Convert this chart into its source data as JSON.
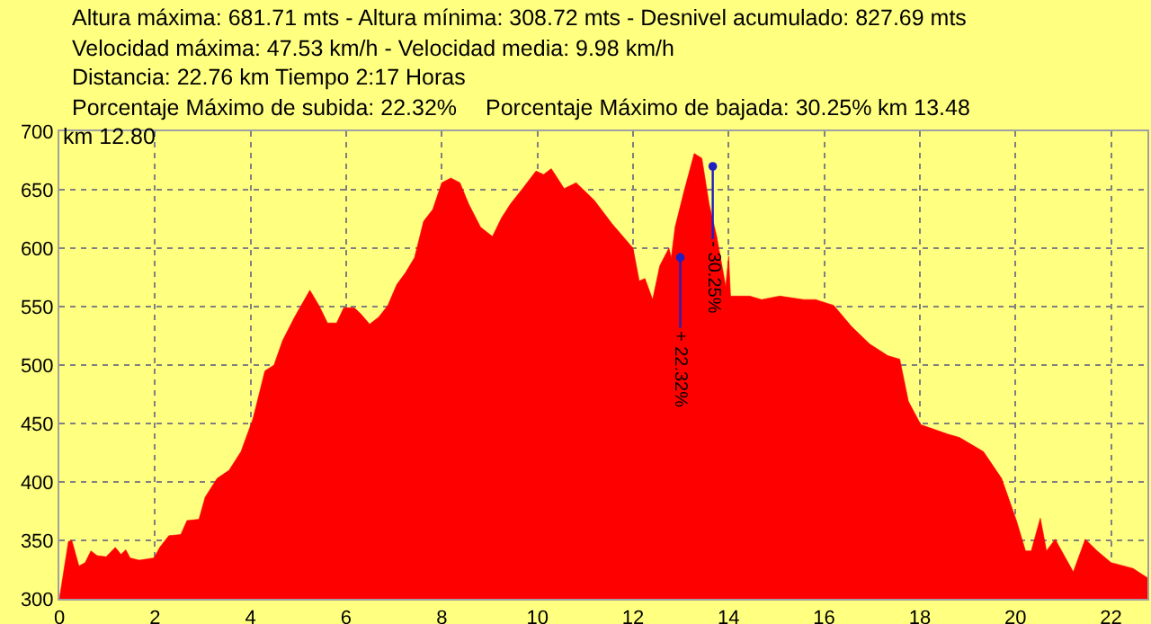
{
  "chart_data": {
    "type": "area",
    "annotations": [
      "Altura máxima: 681.71 mts - Altura mínima: 308.72 mts - Desnivel acumulado: 827.69 mts",
      "Velocidad máxima: 47.53 km/h - Velocidad media: 9.98 km/h",
      "Distancia: 22.76 km Tiempo 2:17 Horas",
      "Porcentaje Máximo de subida: 22.32%",
      "Porcentaje Máximo de bajada: 30.25%",
      "km 13.48",
      "km 12.80",
      {
        "text": "+ 22.32%",
        "x": 12.8,
        "y": 592
      },
      {
        "text": "- 30.25%",
        "x": 13.48,
        "y": 670
      }
    ],
    "x": [
      0,
      0.04,
      0.19,
      0.26,
      0.41,
      0.54,
      0.66,
      0.79,
      0.98,
      1.17,
      1.29,
      1.39,
      1.48,
      1.67,
      1.98,
      2.1,
      2.29,
      2.54,
      2.67,
      2.92,
      3.05,
      3.3,
      3.55,
      3.8,
      4.05,
      4.3,
      4.49,
      4.67,
      4.92,
      5.24,
      5.43,
      5.61,
      5.8,
      5.95,
      6.17,
      6.3,
      6.49,
      6.68,
      6.87,
      7.06,
      7.24,
      7.43,
      7.62,
      7.81,
      8.0,
      8.19,
      8.38,
      8.56,
      8.81,
      9.06,
      9.25,
      9.44,
      9.69,
      9.97,
      10.13,
      10.29,
      10.56,
      10.81,
      11.19,
      11.56,
      12.0,
      12.13,
      12.25,
      12.41,
      12.56,
      12.75,
      12.8,
      12.88,
      13.07,
      13.28,
      13.44,
      13.59,
      13.75,
      13.94,
      14.0,
      14.04,
      14.44,
      14.69,
      15.07,
      15.57,
      15.82,
      16.2,
      16.57,
      16.95,
      17.33,
      17.58,
      17.76,
      18.02,
      18.58,
      18.83,
      19.33,
      19.71,
      20.02,
      20.21,
      20.33,
      20.52,
      20.65,
      20.83,
      21.21,
      21.46,
      21.71,
      22.0,
      22.46,
      22.76
    ],
    "series": [
      {
        "color": "#ff0000",
        "values": [
          300,
          310,
          349,
          350,
          328,
          331,
          341,
          337,
          336,
          344,
          338,
          342,
          335,
          333,
          335,
          344,
          354,
          355,
          367,
          368,
          387,
          403,
          410,
          426,
          454,
          495,
          500,
          521,
          541,
          564,
          551,
          536,
          536,
          549,
          549,
          544,
          535,
          541,
          551,
          569,
          579,
          592,
          623,
          633,
          656,
          660,
          656,
          638,
          618,
          610,
          626,
          638,
          651,
          666,
          663,
          668,
          651,
          656,
          641,
          621,
          600,
          572,
          574,
          556,
          585,
          600,
          592,
          618,
          649,
          681,
          677,
          638,
          610,
          567,
          593,
          559,
          559,
          556,
          559,
          556,
          556,
          551,
          533,
          518,
          508,
          505,
          469,
          449,
          441,
          438,
          426,
          403,
          367,
          341,
          341,
          369,
          341,
          351,
          323,
          351,
          341,
          331,
          326,
          318
        ]
      }
    ],
    "xlim": [
      0,
      22.76
    ],
    "ylim": [
      300,
      700
    ],
    "xticks": [
      0,
      2,
      4,
      6,
      8,
      10,
      12,
      14,
      16,
      18,
      20,
      22
    ],
    "yticks": [
      300,
      350,
      400,
      450,
      500,
      550,
      600,
      650,
      700
    ],
    "grid": true
  }
}
